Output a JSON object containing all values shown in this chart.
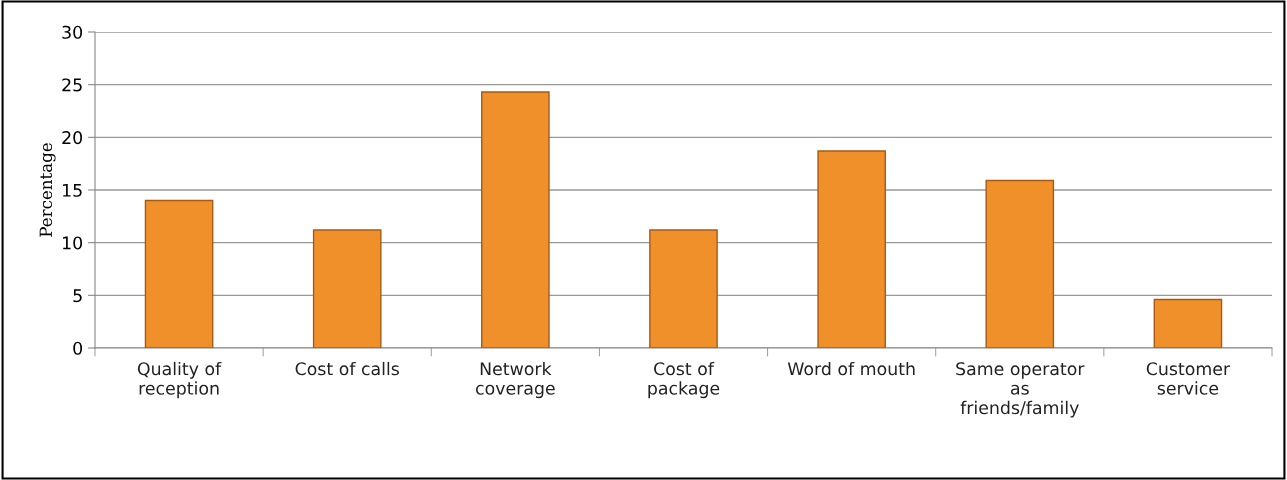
{
  "chart_data": {
    "type": "bar",
    "ylabel": "Percentage",
    "categories": [
      "Quality of\nreception",
      "Cost of calls",
      "Network\ncoverage",
      "Cost of\npackage",
      "Word of mouth",
      "Same operator\nas\nfriends/family",
      "Customer\nservice"
    ],
    "values": [
      14.0,
      11.2,
      24.3,
      11.2,
      18.7,
      15.9,
      4.6
    ],
    "color": "#f0902a",
    "ylim": [
      0,
      30
    ],
    "yticks": [
      0,
      5,
      10,
      15,
      20,
      25,
      30
    ],
    "grid": "y"
  }
}
